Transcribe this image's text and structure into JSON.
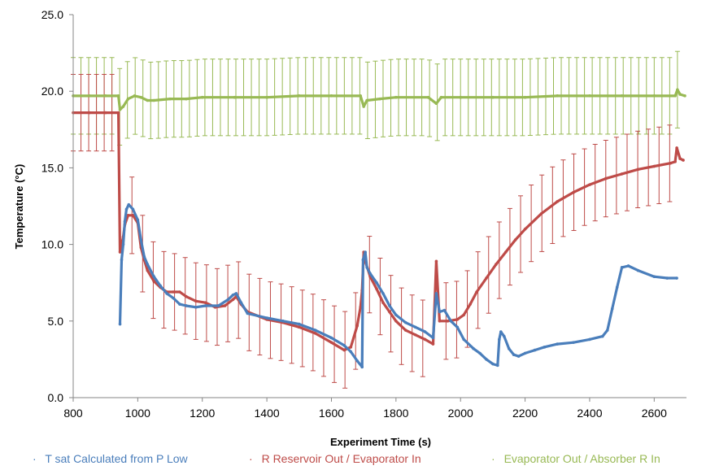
{
  "chart_data": {
    "type": "scatter",
    "title": "",
    "xlabel": "Experiment Time (s)",
    "ylabel": "Temperature (°C)",
    "xlim": [
      800,
      2700
    ],
    "ylim": [
      0,
      25
    ],
    "xticks": [
      800,
      1000,
      1200,
      1400,
      1600,
      1800,
      2000,
      2200,
      2400,
      2600
    ],
    "yticks": [
      "0.0",
      "5.0",
      "10.0",
      "15.0",
      "20.0",
      "25.0"
    ],
    "grid": false,
    "legend_position": "bottom",
    "series": [
      {
        "name": "T sat Calculated from P Low",
        "color": "#4a7ebb",
        "points": [
          [
            945,
            4.8
          ],
          [
            950,
            9.0
          ],
          [
            955,
            10.0
          ],
          [
            960,
            11.5
          ],
          [
            965,
            12.3
          ],
          [
            972,
            12.6
          ],
          [
            985,
            12.3
          ],
          [
            1000,
            11.6
          ],
          [
            1010,
            10.3
          ],
          [
            1020,
            9.2
          ],
          [
            1030,
            8.7
          ],
          [
            1050,
            7.9
          ],
          [
            1070,
            7.3
          ],
          [
            1090,
            6.8
          ],
          [
            1110,
            6.5
          ],
          [
            1130,
            6.1
          ],
          [
            1150,
            6.0
          ],
          [
            1180,
            5.9
          ],
          [
            1210,
            6.0
          ],
          [
            1250,
            6.0
          ],
          [
            1280,
            6.4
          ],
          [
            1295,
            6.7
          ],
          [
            1305,
            6.8
          ],
          [
            1320,
            6.2
          ],
          [
            1340,
            5.5
          ],
          [
            1400,
            5.2
          ],
          [
            1450,
            5.0
          ],
          [
            1500,
            4.8
          ],
          [
            1550,
            4.4
          ],
          [
            1600,
            3.9
          ],
          [
            1640,
            3.4
          ],
          [
            1660,
            3.0
          ],
          [
            1680,
            2.4
          ],
          [
            1695,
            2.0
          ],
          [
            1698,
            9.0
          ],
          [
            1705,
            9.5
          ],
          [
            1710,
            8.5
          ],
          [
            1720,
            8.1
          ],
          [
            1740,
            7.5
          ],
          [
            1760,
            6.8
          ],
          [
            1780,
            6.0
          ],
          [
            1800,
            5.4
          ],
          [
            1830,
            4.9
          ],
          [
            1860,
            4.6
          ],
          [
            1890,
            4.3
          ],
          [
            1915,
            3.9
          ],
          [
            1925,
            6.8
          ],
          [
            1935,
            5.6
          ],
          [
            1950,
            5.7
          ],
          [
            1970,
            5.0
          ],
          [
            1990,
            4.6
          ],
          [
            2010,
            3.8
          ],
          [
            2040,
            3.2
          ],
          [
            2060,
            2.9
          ],
          [
            2080,
            2.5
          ],
          [
            2100,
            2.2
          ],
          [
            2115,
            2.1
          ],
          [
            2120,
            3.8
          ],
          [
            2125,
            4.3
          ],
          [
            2135,
            4.0
          ],
          [
            2150,
            3.2
          ],
          [
            2165,
            2.8
          ],
          [
            2180,
            2.7
          ],
          [
            2200,
            2.9
          ],
          [
            2230,
            3.1
          ],
          [
            2260,
            3.3
          ],
          [
            2300,
            3.5
          ],
          [
            2350,
            3.6
          ],
          [
            2400,
            3.8
          ],
          [
            2440,
            4.0
          ],
          [
            2455,
            4.4
          ],
          [
            2470,
            5.8
          ],
          [
            2485,
            7.2
          ],
          [
            2500,
            8.5
          ],
          [
            2520,
            8.6
          ],
          [
            2550,
            8.3
          ],
          [
            2600,
            7.9
          ],
          [
            2640,
            7.8
          ],
          [
            2670,
            7.8
          ]
        ]
      },
      {
        "name": "R Reservoir Out / Evaporator In",
        "color": "#be4b48",
        "points": [
          [
            800,
            18.6
          ],
          [
            850,
            18.6
          ],
          [
            900,
            18.6
          ],
          [
            940,
            18.6
          ],
          [
            945,
            9.5
          ],
          [
            955,
            10.5
          ],
          [
            960,
            11.3
          ],
          [
            970,
            11.9
          ],
          [
            985,
            11.9
          ],
          [
            1000,
            11.4
          ],
          [
            1010,
            9.8
          ],
          [
            1020,
            9.0
          ],
          [
            1030,
            8.3
          ],
          [
            1050,
            7.6
          ],
          [
            1070,
            7.2
          ],
          [
            1090,
            6.9
          ],
          [
            1110,
            6.9
          ],
          [
            1130,
            6.9
          ],
          [
            1150,
            6.6
          ],
          [
            1180,
            6.3
          ],
          [
            1210,
            6.2
          ],
          [
            1240,
            5.9
          ],
          [
            1270,
            6.0
          ],
          [
            1295,
            6.4
          ],
          [
            1305,
            6.6
          ],
          [
            1320,
            6.1
          ],
          [
            1340,
            5.6
          ],
          [
            1400,
            5.1
          ],
          [
            1450,
            4.9
          ],
          [
            1500,
            4.6
          ],
          [
            1550,
            4.2
          ],
          [
            1600,
            3.6
          ],
          [
            1640,
            3.1
          ],
          [
            1660,
            3.3
          ],
          [
            1680,
            4.7
          ],
          [
            1690,
            5.9
          ],
          [
            1695,
            7.0
          ],
          [
            1700,
            9.5
          ],
          [
            1705,
            8.9
          ],
          [
            1720,
            7.9
          ],
          [
            1740,
            7.1
          ],
          [
            1760,
            6.2
          ],
          [
            1780,
            5.6
          ],
          [
            1800,
            5.0
          ],
          [
            1830,
            4.4
          ],
          [
            1860,
            4.1
          ],
          [
            1890,
            3.8
          ],
          [
            1915,
            3.5
          ],
          [
            1925,
            8.9
          ],
          [
            1935,
            5.0
          ],
          [
            1960,
            5.0
          ],
          [
            1990,
            5.1
          ],
          [
            2010,
            5.4
          ],
          [
            2030,
            6.1
          ],
          [
            2050,
            6.9
          ],
          [
            2080,
            7.8
          ],
          [
            2110,
            8.7
          ],
          [
            2140,
            9.5
          ],
          [
            2170,
            10.3
          ],
          [
            2200,
            11.0
          ],
          [
            2250,
            12.0
          ],
          [
            2300,
            12.8
          ],
          [
            2350,
            13.4
          ],
          [
            2400,
            13.9
          ],
          [
            2450,
            14.3
          ],
          [
            2500,
            14.6
          ],
          [
            2550,
            14.9
          ],
          [
            2600,
            15.1
          ],
          [
            2650,
            15.3
          ],
          [
            2665,
            15.4
          ],
          [
            2670,
            16.3
          ],
          [
            2680,
            15.6
          ],
          [
            2690,
            15.5
          ]
        ]
      },
      {
        "name": "Evaporator Out / Absorber R In",
        "color": "#98b954",
        "points": [
          [
            800,
            19.7
          ],
          [
            850,
            19.7
          ],
          [
            900,
            19.7
          ],
          [
            940,
            19.7
          ],
          [
            945,
            18.8
          ],
          [
            955,
            19.0
          ],
          [
            970,
            19.5
          ],
          [
            990,
            19.7
          ],
          [
            1010,
            19.6
          ],
          [
            1030,
            19.4
          ],
          [
            1050,
            19.4
          ],
          [
            1100,
            19.5
          ],
          [
            1150,
            19.5
          ],
          [
            1200,
            19.6
          ],
          [
            1300,
            19.6
          ],
          [
            1400,
            19.6
          ],
          [
            1500,
            19.7
          ],
          [
            1600,
            19.7
          ],
          [
            1690,
            19.7
          ],
          [
            1700,
            19.0
          ],
          [
            1710,
            19.4
          ],
          [
            1750,
            19.5
          ],
          [
            1800,
            19.6
          ],
          [
            1900,
            19.6
          ],
          [
            1925,
            19.2
          ],
          [
            1940,
            19.6
          ],
          [
            2000,
            19.6
          ],
          [
            2100,
            19.6
          ],
          [
            2200,
            19.6
          ],
          [
            2300,
            19.7
          ],
          [
            2400,
            19.7
          ],
          [
            2500,
            19.7
          ],
          [
            2600,
            19.7
          ],
          [
            2665,
            19.7
          ],
          [
            2672,
            20.1
          ],
          [
            2680,
            19.8
          ],
          [
            2695,
            19.7
          ]
        ],
        "error_plus": 2.5,
        "error_minus": 2.5
      }
    ],
    "red_error_bars": {
      "plus": 2.5,
      "minus": 2.5
    }
  },
  "legend": [
    {
      "label": "T sat Calculated from P Low",
      "color": "#4a7ebb"
    },
    {
      "label": "R Reservoir Out / Evaporator In",
      "color": "#be4b48"
    },
    {
      "label": "Evaporator Out / Absorber R In",
      "color": "#98b954"
    }
  ]
}
